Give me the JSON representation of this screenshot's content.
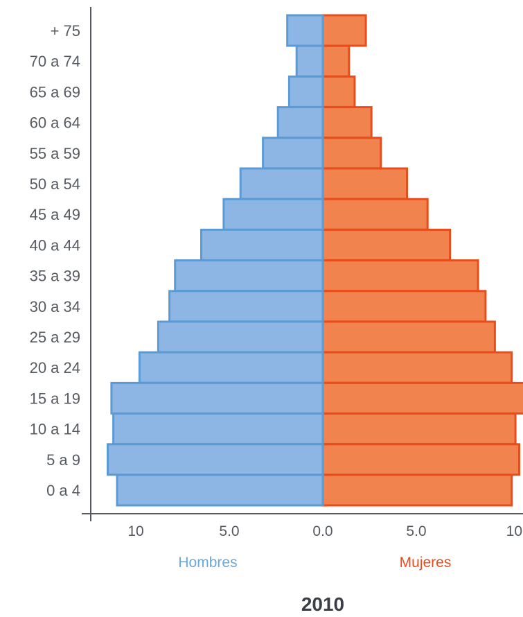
{
  "chart_data": {
    "type": "bar",
    "orientation": "horizontal-population-pyramid",
    "categories": [
      "+ 75",
      "70 a 74",
      "65 a 69",
      "60 a 64",
      "55 a 59",
      "50 a 54",
      "45 a 49",
      "40 a 44",
      "35 a 39",
      "30 a 34",
      "25 a 29",
      "20 a 24",
      "15 a 19",
      "10 a 14",
      "5 a 9",
      "0 a 4"
    ],
    "series": [
      {
        "name": "Hombres",
        "side": "left",
        "color": "#8db6e4",
        "stroke": "#5b9bd5",
        "values": [
          1.9,
          1.4,
          1.8,
          2.4,
          3.2,
          4.4,
          5.3,
          6.5,
          7.9,
          8.2,
          8.8,
          9.8,
          11.3,
          11.2,
          11.5,
          11.0
        ]
      },
      {
        "name": "Mujeres",
        "side": "right",
        "color": "#f1834f",
        "stroke": "#e84e1b",
        "values": [
          2.3,
          1.4,
          1.7,
          2.6,
          3.1,
          4.5,
          5.6,
          6.8,
          8.3,
          8.7,
          9.2,
          10.1,
          11.0,
          10.3,
          10.5,
          10.1
        ]
      }
    ],
    "x_ticks": [
      "10",
      "5.0",
      "0.0",
      "5.0",
      "10"
    ],
    "xlim": [
      -12.5,
      10.5
    ],
    "title": "2010",
    "xlabel": "",
    "ylabel": "",
    "grid": false
  }
}
